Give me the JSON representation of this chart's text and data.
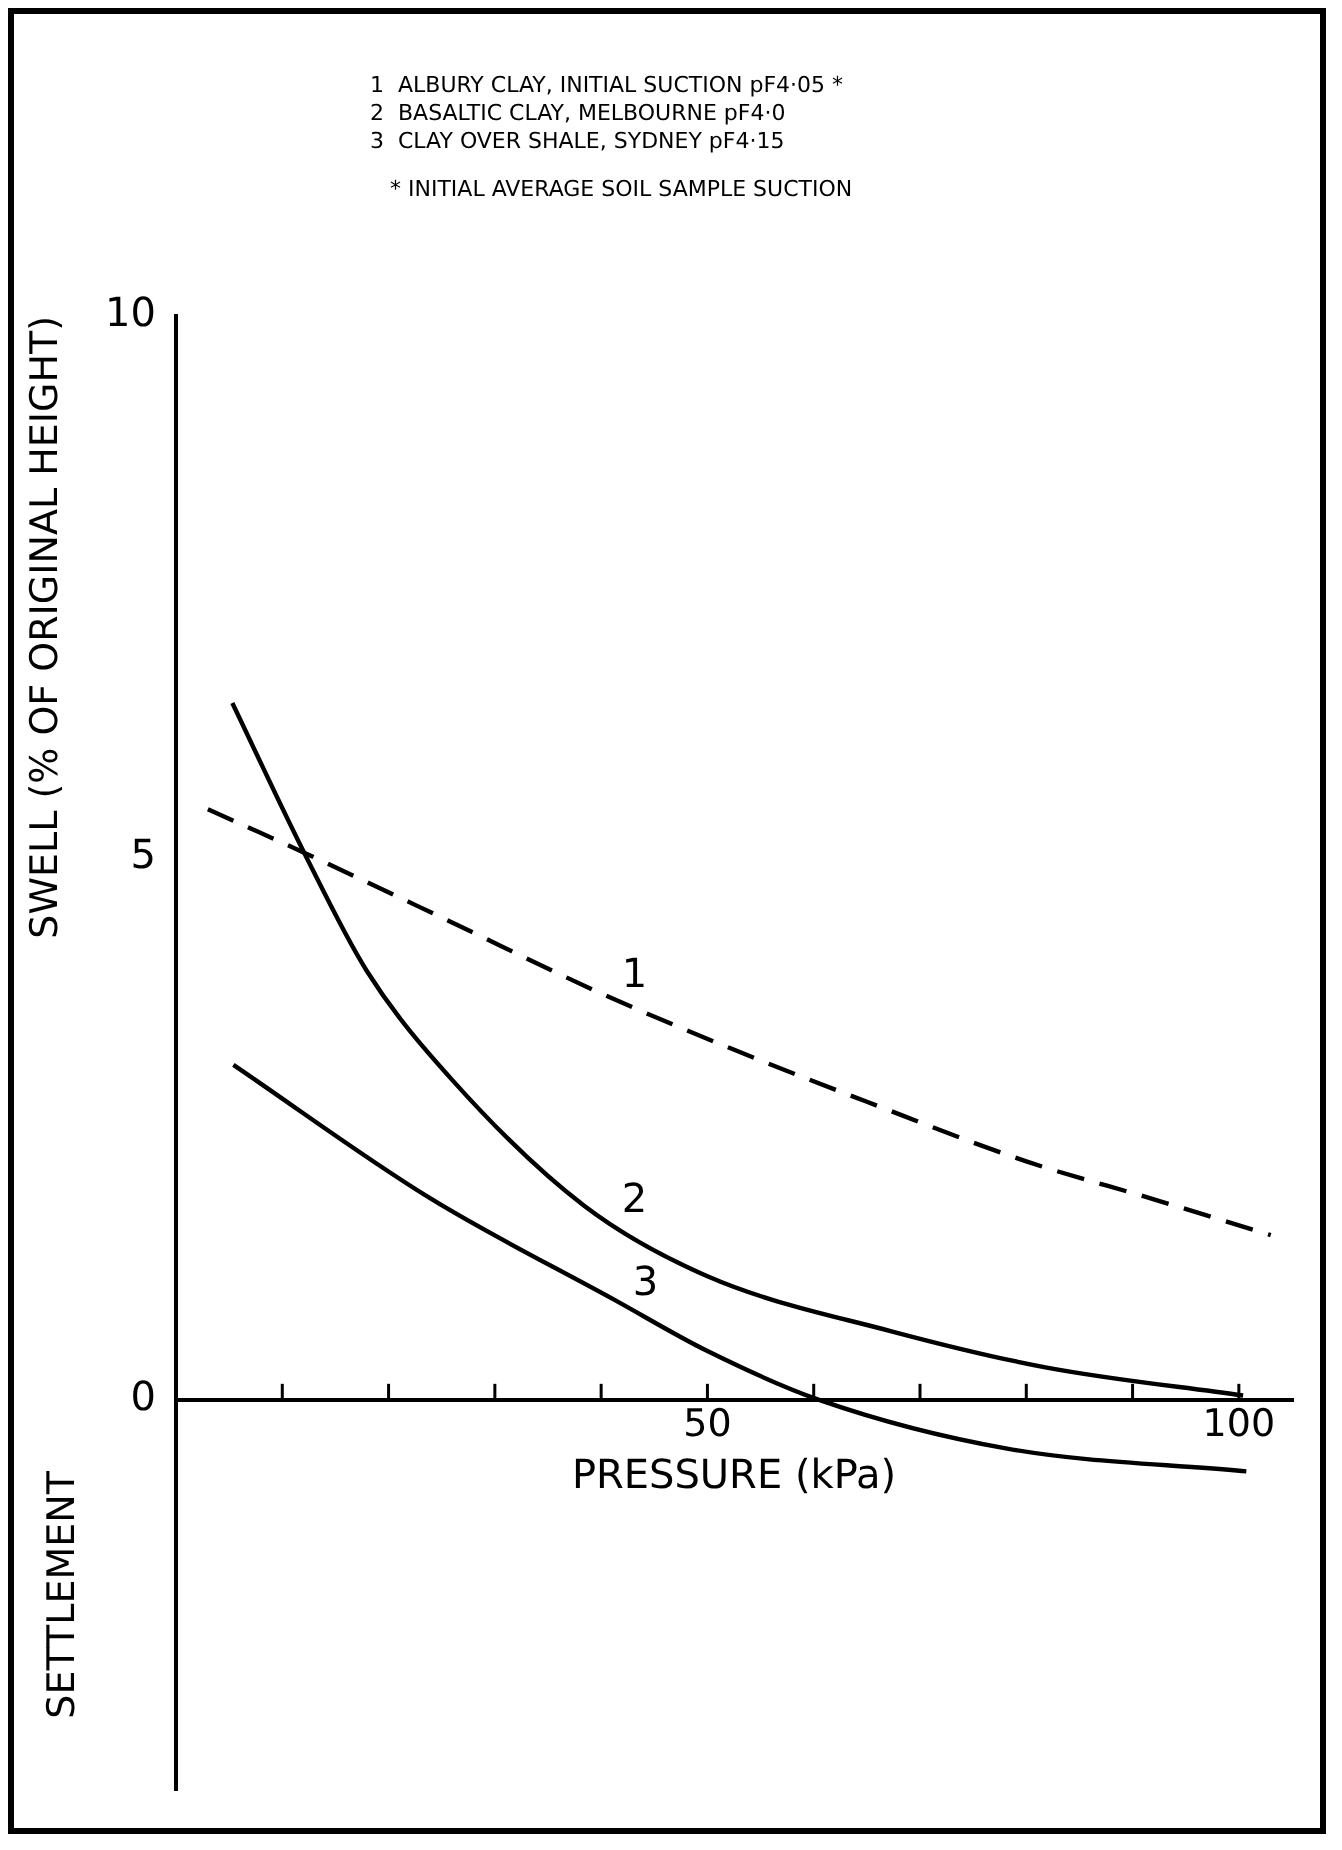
{
  "chart_data": {
    "type": "line",
    "xlabel": "PRESSURE (kPa)",
    "ylabel": "SWELL (% OF ORIGINAL HEIGHT)",
    "annotations": [
      "1  ALBURY CLAY, INITIAL SUCTION pF4·05 *",
      "2  BASALTIC CLAY, MELBOURNE pF4·0",
      "3  CLAY OVER SHALE, SYDNEY pF4·15",
      "* INITIAL AVERAGE SOIL SAMPLE SUCTION",
      "SETTLEMENT"
    ],
    "xlim": [
      0,
      105
    ],
    "xticks": [
      {
        "value": 10,
        "label": null
      },
      {
        "value": 20,
        "label": null
      },
      {
        "value": 30,
        "label": null
      },
      {
        "value": 40,
        "label": null
      },
      50,
      {
        "value": 60,
        "label": null
      },
      {
        "value": 70,
        "label": null
      },
      {
        "value": 80,
        "label": null
      },
      {
        "value": 90,
        "label": null
      },
      100
    ],
    "ylim": [
      -3.6,
      10
    ],
    "yticks": [
      0,
      5,
      10
    ],
    "grid": false,
    "legend": false,
    "marker": "none",
    "series": [
      {
        "name": "1",
        "color": "#000000",
        "line_style": "dashed",
        "x": [
          3,
          12,
          25,
          40,
          52,
          65,
          80,
          92,
          103
        ],
        "values": [
          5.45,
          5.05,
          4.45,
          3.75,
          3.25,
          2.75,
          2.2,
          1.85,
          1.52
        ]
      },
      {
        "name": "2",
        "color": "#000000",
        "line_style": "solid",
        "x": [
          5.3,
          12,
          18,
          26,
          38.4,
          50,
          67.4,
          81.8,
          100.4
        ],
        "values": [
          6.43,
          5.06,
          3.95,
          2.95,
          1.79,
          1.14,
          0.63,
          0.3,
          0.04
        ]
      },
      {
        "name": "3",
        "color": "#000000",
        "line_style": "solid",
        "x": [
          5.4,
          23.9,
          41.3,
          50,
          60.5,
          78.2,
          100.7
        ],
        "values": [
          3.09,
          1.86,
          0.92,
          0.45,
          0,
          -0.45,
          -0.66
        ]
      }
    ]
  }
}
